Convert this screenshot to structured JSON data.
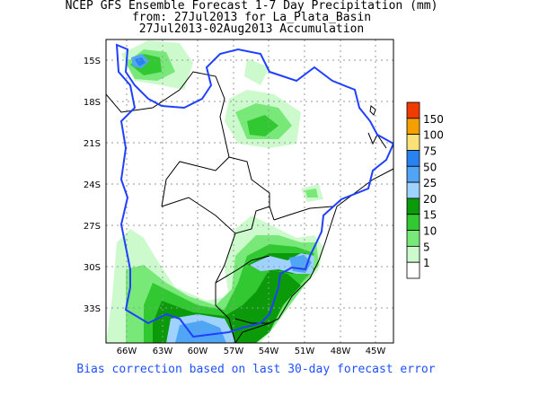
{
  "title": {
    "line1": "NCEP GFS Ensemble Forecast 1-7 Day Precipitation (mm)",
    "line2": "from: 27Jul2013   for La_Plata_Basin",
    "line3": "27Jul2013-02Aug2013 Accumulation"
  },
  "axes": {
    "lat_ticks": [
      "15S",
      "18S",
      "21S",
      "24S",
      "27S",
      "30S",
      "33S"
    ],
    "lon_ticks": [
      "66W",
      "63W",
      "60W",
      "57W",
      "54W",
      "51W",
      "48W",
      "45W"
    ]
  },
  "legend": {
    "levels": [
      "150",
      "100",
      "75",
      "50",
      "25",
      "20",
      "15",
      "10",
      "5",
      "1"
    ],
    "colors": [
      "#f03c00",
      "#f5a000",
      "#fae178",
      "#2882f0",
      "#50a5f5",
      "#a0d2ff",
      "#0a9a0a",
      "#32c832",
      "#78e878",
      "#ccfacc",
      "#ffffff"
    ]
  },
  "footer": "Bias correction based on last 30-day forecast error"
}
